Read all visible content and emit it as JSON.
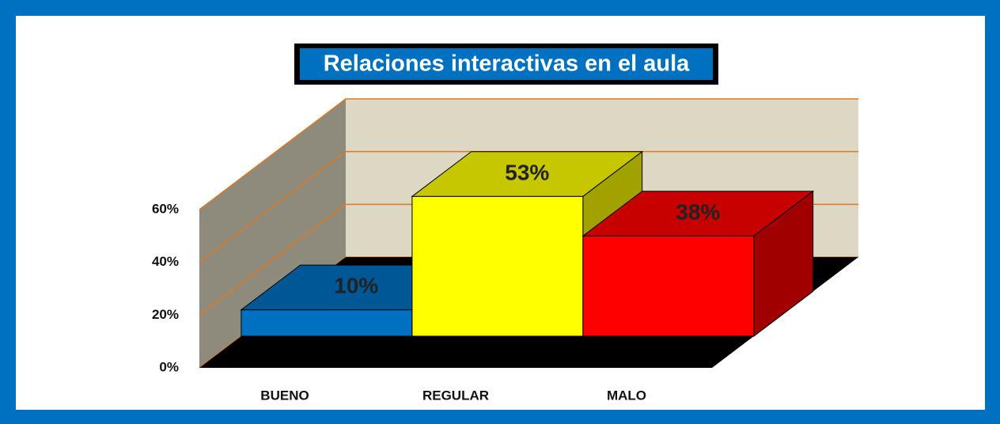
{
  "chart_data": {
    "type": "bar3d",
    "title": "Relaciones interactivas en el aula",
    "categories": [
      "BUENO",
      "REGULAR",
      "MALO"
    ],
    "values": [
      10,
      53,
      38
    ],
    "value_labels": [
      "10%",
      "53%",
      "38%"
    ],
    "colors": [
      "#0070C0",
      "#FFFF00",
      "#FF0000"
    ],
    "ylim": [
      0,
      60
    ],
    "yticks": [
      {
        "value": 0,
        "label": "0%"
      },
      {
        "value": 20,
        "label": "20%"
      },
      {
        "value": 40,
        "label": "40%"
      },
      {
        "value": 60,
        "label": "60%"
      }
    ],
    "grid": true
  }
}
